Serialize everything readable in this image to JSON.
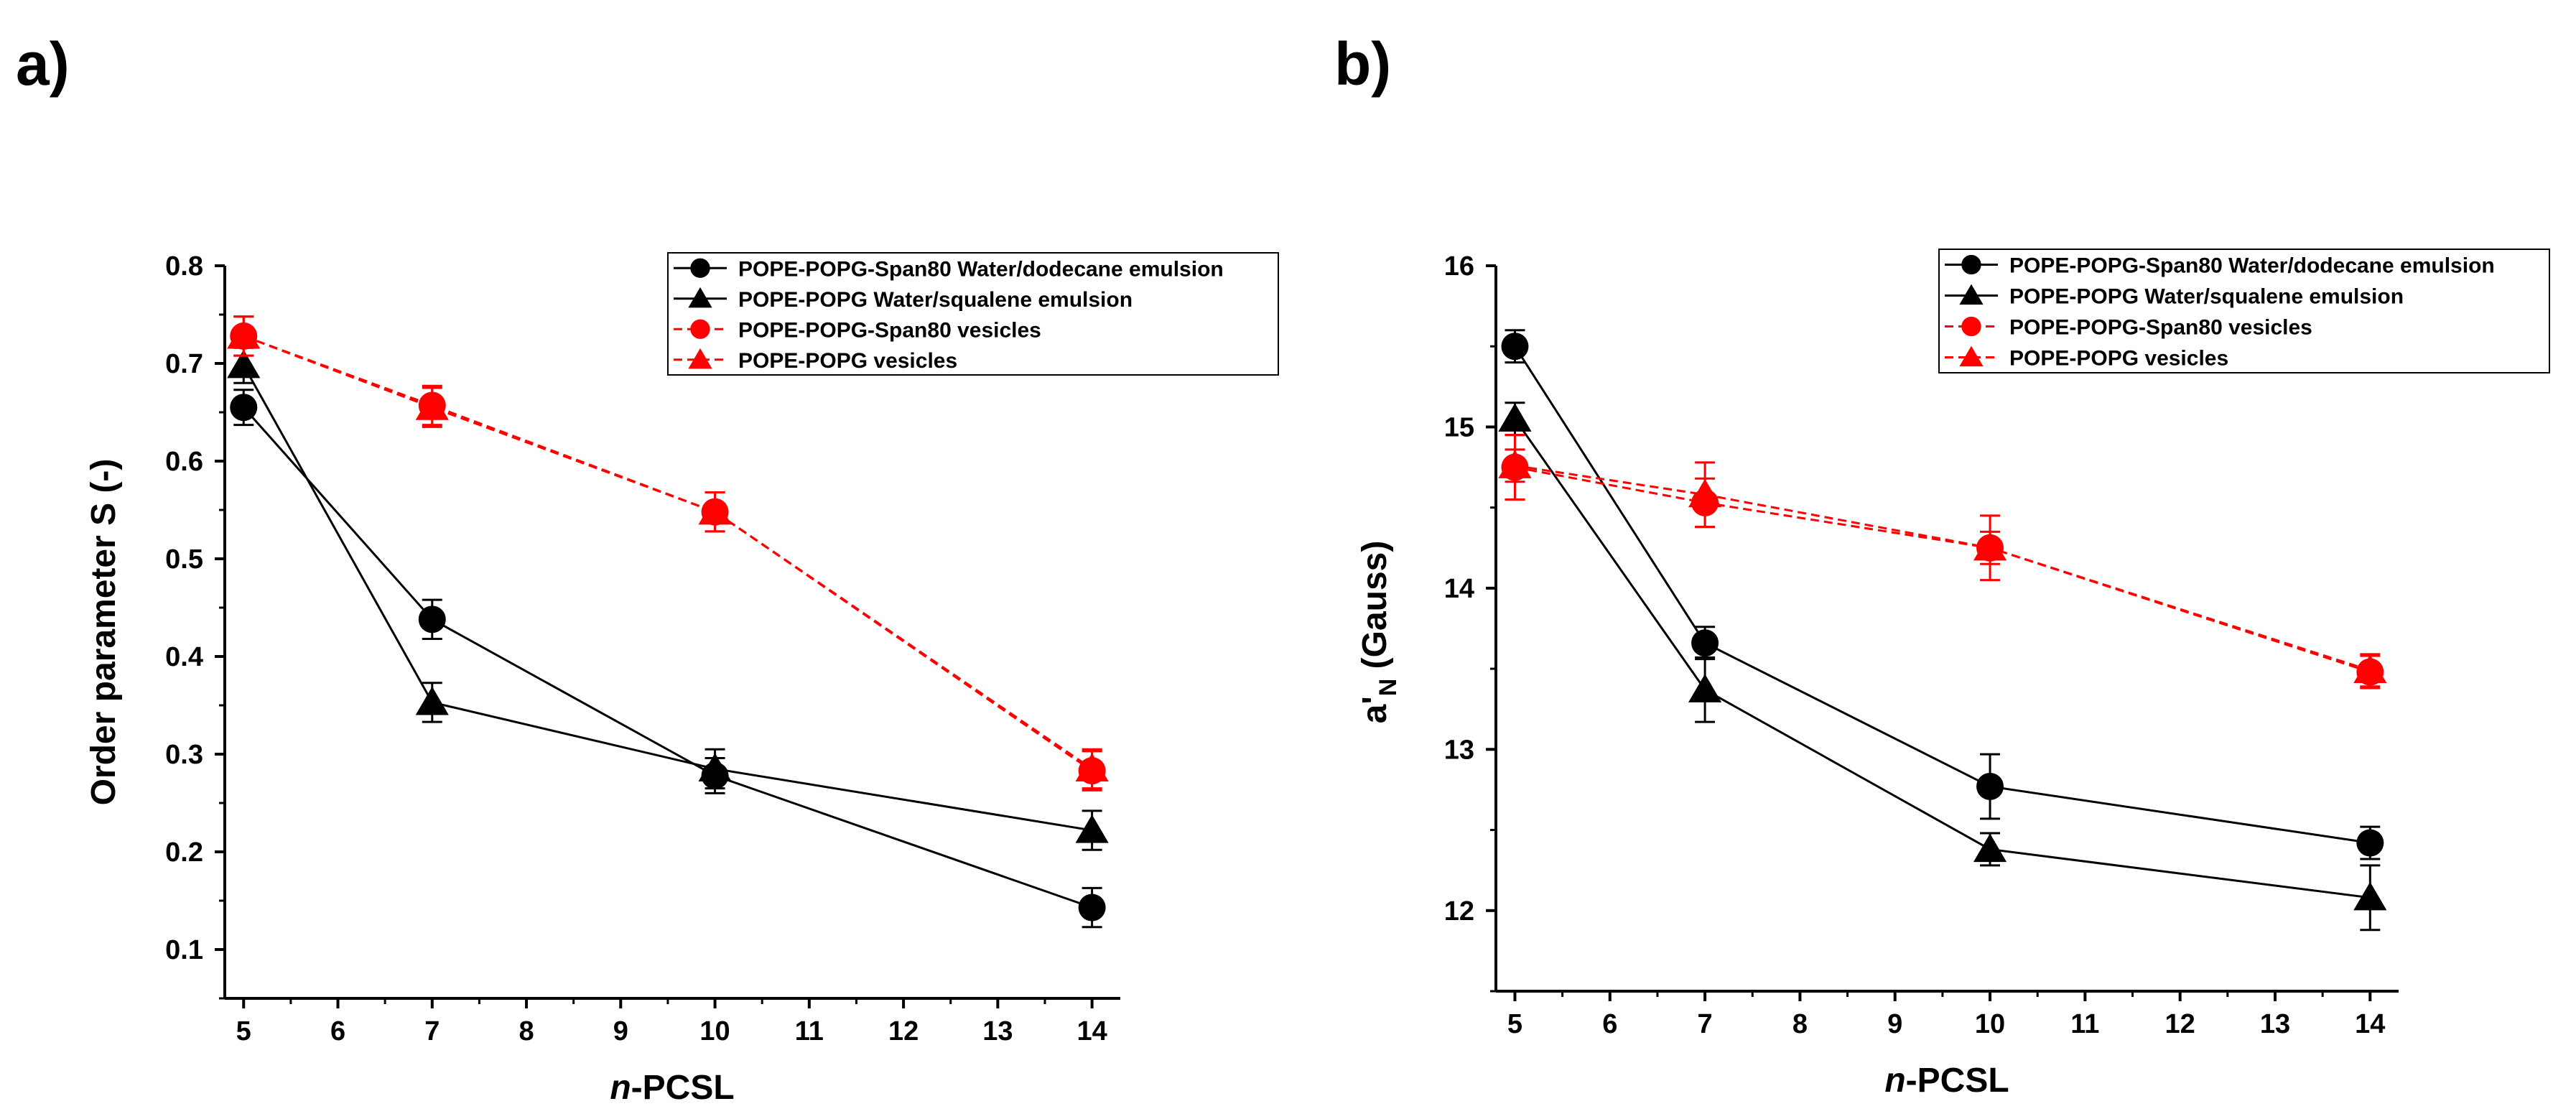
{
  "chart_data": [
    {
      "type": "line",
      "panel_label": "a)",
      "title": "",
      "xlabel_italic": "n",
      "xlabel_rest": "-PCSL",
      "ylabel": "Order parameter S (-)",
      "ylabel_sub": "",
      "ylabel_tail": "",
      "xlim": [
        4.8,
        14.3
      ],
      "ylim": [
        0.05,
        0.8
      ],
      "xticks": [
        5,
        6,
        7,
        8,
        9,
        10,
        11,
        12,
        13,
        14
      ],
      "yticks": [
        0.1,
        0.2,
        0.3,
        0.4,
        0.5,
        0.6,
        0.7,
        0.8
      ],
      "yticks_labels": [
        "0.1",
        "0.2",
        "0.3",
        "0.4",
        "0.5",
        "0.6",
        "0.7",
        "0.8"
      ],
      "legend_position": "top-right",
      "series": [
        {
          "name": "POPE-POPG-Span80 Water/dodecane emulsion",
          "color": "#000000",
          "dash": "solid",
          "marker": "circle",
          "x": [
            5,
            7,
            10,
            14
          ],
          "y": [
            0.655,
            0.438,
            0.278,
            0.143
          ],
          "err": [
            0.018,
            0.02,
            0.018,
            0.02
          ]
        },
        {
          "name": "POPE-POPG Water/squalene emulsion",
          "color": "#000000",
          "dash": "solid",
          "marker": "triangle",
          "x": [
            5,
            7,
            10,
            14
          ],
          "y": [
            0.698,
            0.353,
            0.285,
            0.222
          ],
          "err": [
            0.018,
            0.02,
            0.02,
            0.02
          ]
        },
        {
          "name": "POPE-POPG-Span80 vesicles",
          "color": "#ff0000",
          "dash": "dashed",
          "marker": "circle",
          "x": [
            5,
            7,
            10,
            14
          ],
          "y": [
            0.728,
            0.657,
            0.548,
            0.283
          ],
          "err": [
            0.02,
            0.02,
            0.02,
            0.02
          ]
        },
        {
          "name": "POPE-POPG vesicles",
          "color": "#ff0000",
          "dash": "dashed",
          "marker": "triangle",
          "x": [
            5,
            7,
            10,
            14
          ],
          "y": [
            0.728,
            0.655,
            0.548,
            0.285
          ],
          "err": [
            0.02,
            0.02,
            0.02,
            0.02
          ]
        }
      ]
    },
    {
      "type": "line",
      "panel_label": "b)",
      "title": "",
      "xlabel_italic": "n",
      "xlabel_rest": "-PCSL",
      "ylabel": "a'",
      "ylabel_sub": "N",
      "ylabel_tail": " (Gauss)",
      "xlim": [
        4.8,
        14.3
      ],
      "ylim": [
        11.5,
        16.0
      ],
      "xticks": [
        5,
        6,
        7,
        8,
        9,
        10,
        11,
        12,
        13,
        14
      ],
      "yticks": [
        12,
        13,
        14,
        15,
        16
      ],
      "yticks_labels": [
        "12",
        "13",
        "14",
        "15",
        "16"
      ],
      "legend_position": "top-right",
      "series": [
        {
          "name": "POPE-POPG-Span80 Water/dodecane emulsion",
          "color": "#000000",
          "dash": "solid",
          "marker": "circle",
          "x": [
            5,
            7,
            10,
            14
          ],
          "y": [
            15.5,
            13.66,
            12.77,
            12.42
          ],
          "err": [
            0.1,
            0.1,
            0.2,
            0.1
          ]
        },
        {
          "name": "POPE-POPG Water/squalene emulsion",
          "color": "#000000",
          "dash": "solid",
          "marker": "triangle",
          "x": [
            5,
            7,
            10,
            14
          ],
          "y": [
            15.05,
            13.37,
            12.38,
            12.08
          ],
          "err": [
            0.1,
            0.2,
            0.1,
            0.2
          ]
        },
        {
          "name": "POPE-POPG-Span80 vesicles",
          "color": "#ff0000",
          "dash": "dashed",
          "marker": "circle",
          "x": [
            5,
            7,
            10,
            14
          ],
          "y": [
            14.75,
            14.53,
            14.25,
            13.48
          ],
          "err": [
            0.2,
            0.15,
            0.2,
            0.1
          ]
        },
        {
          "name": "POPE-POPG vesicles",
          "color": "#ff0000",
          "dash": "dashed",
          "marker": "triangle",
          "x": [
            5,
            7,
            10,
            14
          ],
          "y": [
            14.76,
            14.58,
            14.25,
            13.49
          ],
          "err": [
            0.1,
            0.2,
            0.1,
            0.1
          ]
        }
      ]
    }
  ]
}
